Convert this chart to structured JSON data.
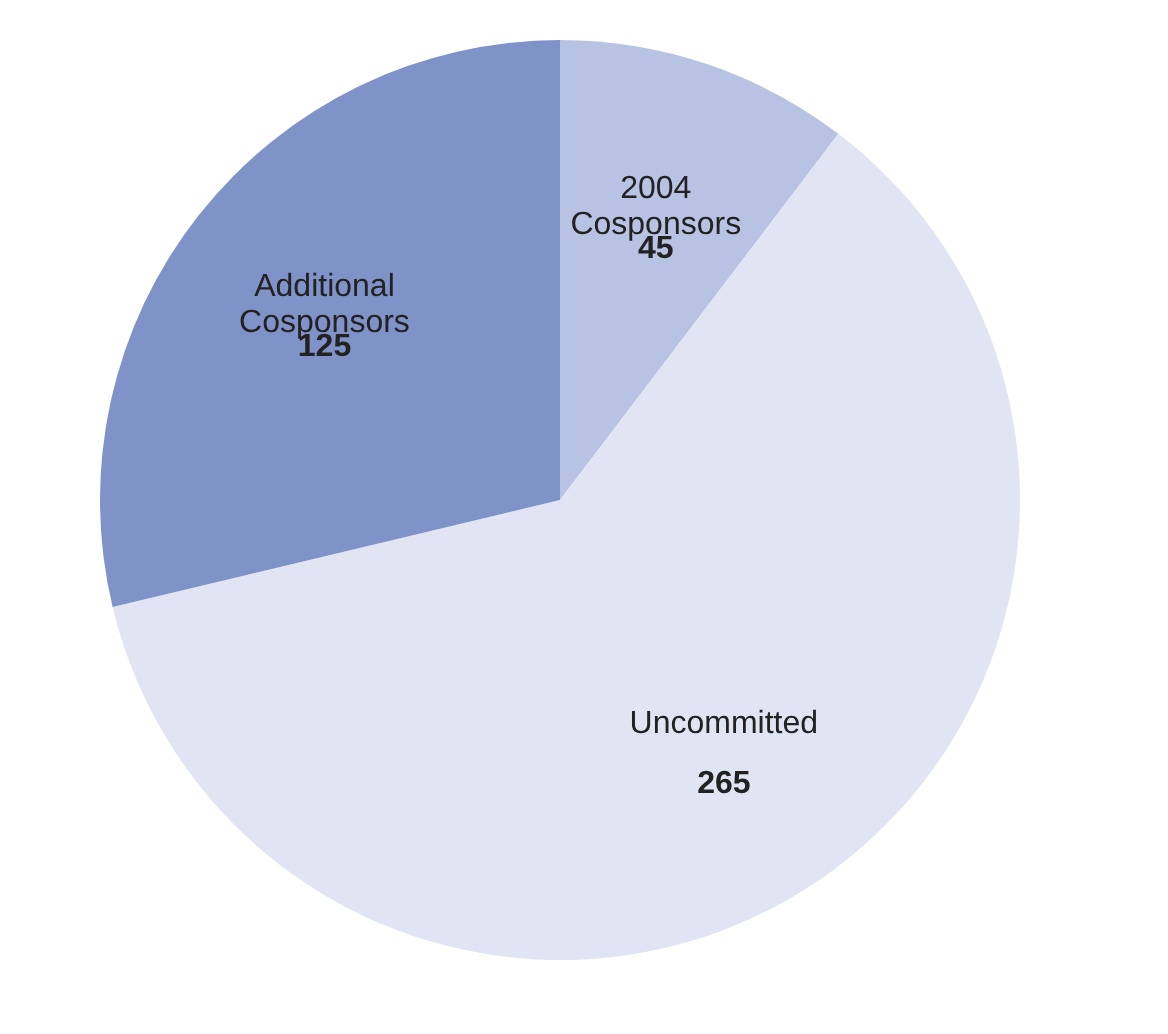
{
  "chart_data": {
    "type": "pie",
    "categories": [
      "2004 Cosponsors",
      "Uncommitted",
      "Additional Cosponsors"
    ],
    "values": [
      45,
      265,
      125
    ],
    "colors": [
      "#b8c3e3",
      "#e0e4f3",
      "#7f93c8"
    ],
    "data_labels": true,
    "legend": false
  }
}
